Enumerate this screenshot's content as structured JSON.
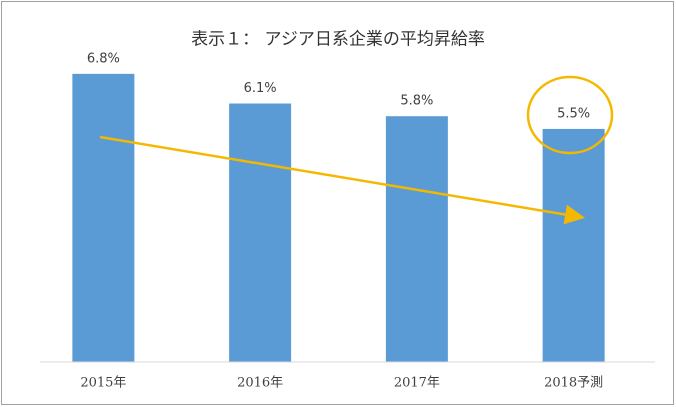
{
  "chart_data": {
    "type": "bar",
    "title": "表示１： アジア日系企業の平均昇給率",
    "categories": [
      "2015年",
      "2016年",
      "2017年",
      "2018予測"
    ],
    "values": [
      6.8,
      6.1,
      5.8,
      5.5
    ],
    "value_labels": [
      "6.8%",
      "6.1%",
      "5.8%",
      "5.5%"
    ],
    "color": "#5b9bd5",
    "ylim": [
      0,
      8
    ]
  }
}
